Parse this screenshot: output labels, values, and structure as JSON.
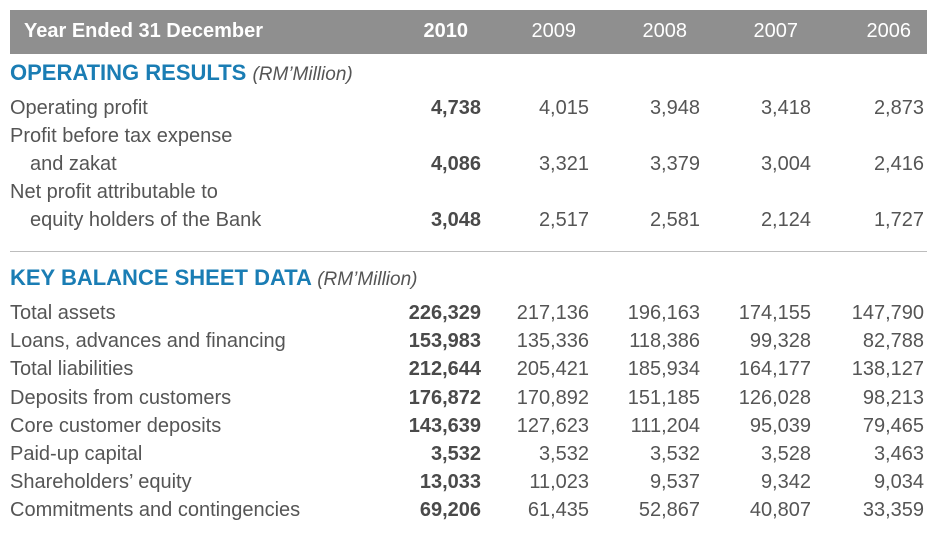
{
  "header": {
    "label": "Year Ended 31 December",
    "years": [
      "2010",
      "2009",
      "2008",
      "2007",
      "2006"
    ]
  },
  "operating": {
    "title": "OPERATING RESULTS",
    "unit": "(RM’Million)",
    "rows": [
      {
        "label_lines": [
          "Operating profit"
        ],
        "values": [
          "4,738",
          "4,015",
          "3,948",
          "3,418",
          "2,873"
        ]
      },
      {
        "label_lines": [
          "Profit before tax expense",
          "and zakat"
        ],
        "values": [
          "4,086",
          "3,321",
          "3,379",
          "3,004",
          "2,416"
        ]
      },
      {
        "label_lines": [
          "Net profit attributable to",
          "equity holders of the Bank"
        ],
        "values": [
          "3,048",
          "2,517",
          "2,581",
          "2,124",
          "1,727"
        ]
      }
    ]
  },
  "balance": {
    "title": "KEY BALANCE SHEET DATA",
    "unit": "(RM’Million)",
    "rows": [
      {
        "label": "Total assets",
        "values": [
          "226,329",
          "217,136",
          "196,163",
          "174,155",
          "147,790"
        ]
      },
      {
        "label": "Loans, advances and financing",
        "values": [
          "153,983",
          "135,336",
          "118,386",
          "99,328",
          "82,788"
        ]
      },
      {
        "label": "Total liabilities",
        "values": [
          "212,644",
          "205,421",
          "185,934",
          "164,177",
          "138,127"
        ]
      },
      {
        "label": "Deposits from customers",
        "values": [
          "176,872",
          "170,892",
          "151,185",
          "126,028",
          "98,213"
        ]
      },
      {
        "label": "Core customer deposits",
        "values": [
          "143,639",
          "127,623",
          "111,204",
          "95,039",
          "79,465"
        ]
      },
      {
        "label": "Paid-up capital",
        "values": [
          "3,532",
          "3,532",
          "3,532",
          "3,528",
          "3,463"
        ]
      },
      {
        "label": "Shareholders’ equity",
        "values": [
          "13,033",
          "11,023",
          "9,537",
          "9,342",
          "9,034"
        ]
      },
      {
        "label": "Commitments and contingencies",
        "values": [
          "69,206",
          "61,435",
          "52,867",
          "40,807",
          "33,359"
        ]
      }
    ]
  }
}
